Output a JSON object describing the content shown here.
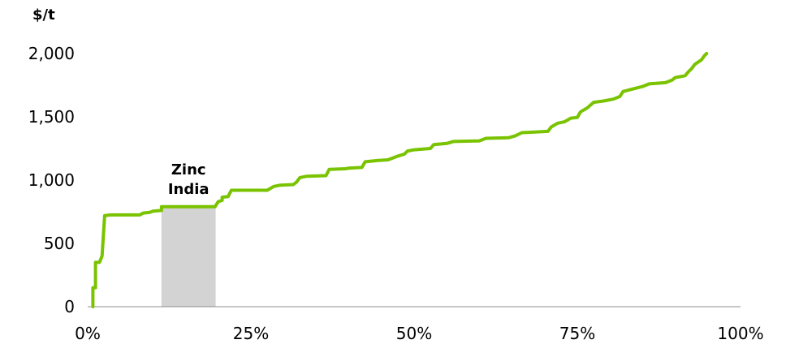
{
  "chart_data": {
    "type": "line",
    "title": "",
    "y_unit_label": "$/t",
    "xlabel": "",
    "ylabel": "",
    "xlim": [
      0,
      100
    ],
    "ylim": [
      0,
      2000
    ],
    "x_ticks": [
      0,
      25,
      50,
      75,
      100
    ],
    "x_tick_labels": [
      "0%",
      "25%",
      "50%",
      "75%",
      "100%"
    ],
    "y_ticks": [
      0,
      500,
      1000,
      1500,
      2000
    ],
    "y_tick_labels": [
      "0",
      "500",
      "1,000",
      "1,500",
      "2,000"
    ],
    "grid": false,
    "legend": "none",
    "series": [
      {
        "color": "#7ac300",
        "points": [
          [
            0.8,
            0
          ],
          [
            0.8,
            150
          ],
          [
            1.2,
            150
          ],
          [
            1.2,
            350
          ],
          [
            1.8,
            350
          ],
          [
            2.2,
            400
          ],
          [
            2.6,
            720
          ],
          [
            3.5,
            725
          ],
          [
            8,
            725
          ],
          [
            8.5,
            740
          ],
          [
            9.5,
            745
          ],
          [
            10,
            755
          ],
          [
            11.3,
            760
          ],
          [
            11.3,
            790
          ],
          [
            19.5,
            790
          ],
          [
            20,
            830
          ],
          [
            20.6,
            840
          ],
          [
            20.6,
            865
          ],
          [
            21.5,
            870
          ],
          [
            22,
            920
          ],
          [
            27.5,
            920
          ],
          [
            28.5,
            950
          ],
          [
            29.5,
            960
          ],
          [
            31.5,
            965
          ],
          [
            32,
            985
          ],
          [
            32.5,
            1020
          ],
          [
            33.5,
            1030
          ],
          [
            36.5,
            1035
          ],
          [
            37,
            1085
          ],
          [
            39.5,
            1090
          ],
          [
            40,
            1095
          ],
          [
            42,
            1100
          ],
          [
            42.5,
            1145
          ],
          [
            44.5,
            1155
          ],
          [
            46,
            1160
          ],
          [
            47.5,
            1190
          ],
          [
            48.5,
            1205
          ],
          [
            49,
            1230
          ],
          [
            50,
            1240
          ],
          [
            52.5,
            1250
          ],
          [
            53,
            1280
          ],
          [
            55,
            1290
          ],
          [
            56,
            1305
          ],
          [
            60,
            1310
          ],
          [
            61,
            1330
          ],
          [
            64.5,
            1335
          ],
          [
            65.5,
            1350
          ],
          [
            66.5,
            1375
          ],
          [
            68.5,
            1380
          ],
          [
            70.5,
            1385
          ],
          [
            71,
            1420
          ],
          [
            72,
            1450
          ],
          [
            73,
            1460
          ],
          [
            74,
            1490
          ],
          [
            75,
            1495
          ],
          [
            75.5,
            1540
          ],
          [
            76.5,
            1570
          ],
          [
            77.5,
            1615
          ],
          [
            79,
            1625
          ],
          [
            80.5,
            1640
          ],
          [
            81.5,
            1660
          ],
          [
            82,
            1700
          ],
          [
            83.5,
            1720
          ],
          [
            85,
            1740
          ],
          [
            86,
            1760
          ],
          [
            88.5,
            1770
          ],
          [
            89.5,
            1790
          ],
          [
            90,
            1810
          ],
          [
            91.5,
            1825
          ],
          [
            92,
            1855
          ],
          [
            92.5,
            1880
          ],
          [
            93,
            1915
          ],
          [
            94,
            1950
          ],
          [
            94.5,
            1985
          ],
          [
            94.8,
            2000
          ]
        ]
      }
    ],
    "highlight": {
      "label_line1": "Zinc",
      "label_line2": "India",
      "x_start": 11.3,
      "x_end": 19.6,
      "y_top": 790,
      "color": "#d3d3d3"
    }
  }
}
